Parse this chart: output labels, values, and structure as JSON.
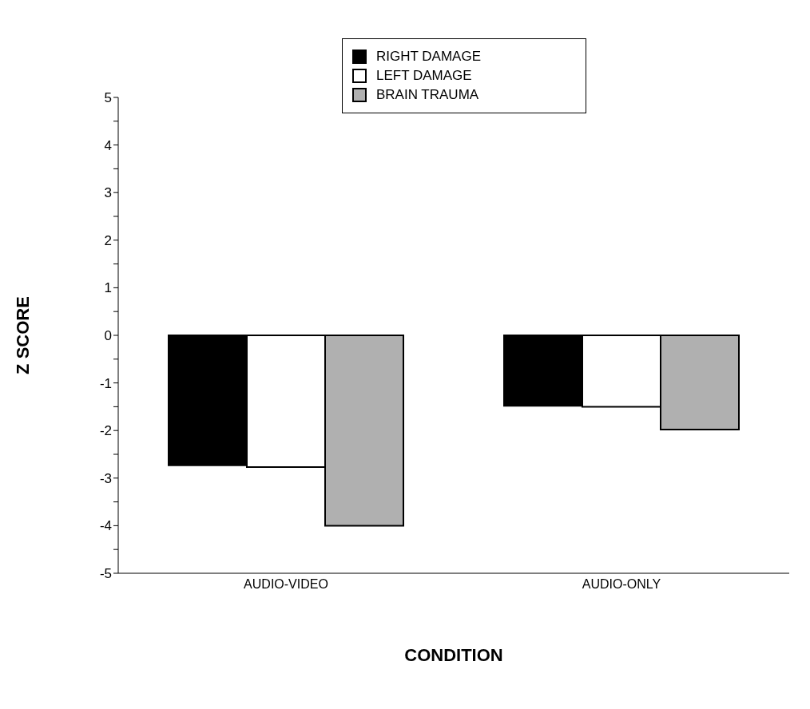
{
  "chart_data": {
    "type": "bar",
    "xlabel": "CONDITION",
    "ylabel": "Z SCORE",
    "categories": [
      "AUDIO-VIDEO",
      "AUDIO-ONLY"
    ],
    "series": [
      {
        "name": "RIGHT DAMAGE",
        "color": "#000000",
        "values": [
          -2.73,
          -1.48
        ]
      },
      {
        "name": "LEFT DAMAGE",
        "color": "#ffffff",
        "values": [
          -2.77,
          -1.5
        ]
      },
      {
        "name": "BRAIN TRAUMA",
        "color": "#b0b0b0",
        "values": [
          -4.0,
          -1.98
        ]
      }
    ],
    "ylim": [
      -5,
      5
    ],
    "yticks": [
      -5,
      {
        "value": -4.5,
        "label": null
      },
      -4,
      {
        "value": -3.5,
        "label": null
      },
      -3,
      {
        "value": -2.5,
        "label": null
      },
      -2,
      {
        "value": -1.5,
        "label": null
      },
      -1,
      {
        "value": -0.5,
        "label": null
      },
      0,
      {
        "value": 0.5,
        "label": null
      },
      1,
      {
        "value": 1.5,
        "label": null
      },
      2,
      {
        "value": 2.5,
        "label": null
      },
      3,
      {
        "value": 3.5,
        "label": null
      },
      4,
      {
        "value": 4.5,
        "label": null
      },
      5
    ],
    "grid": false,
    "legend": "top"
  }
}
